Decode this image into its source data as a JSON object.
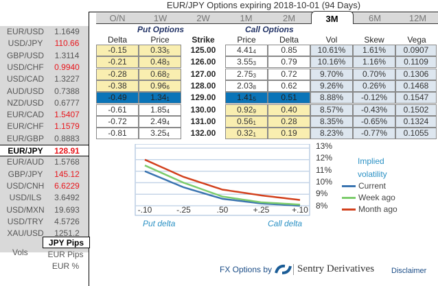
{
  "title": "EUR/JPY Options expiring 2018-10-01 (94 Days)",
  "tabs": [
    "O/N",
    "1W",
    "2W",
    "1M",
    "2M",
    "3M",
    "6M",
    "12M"
  ],
  "active_tab": "3M",
  "pairs": [
    {
      "name": "EUR/USD",
      "value": "1.1649",
      "red": false
    },
    {
      "name": "USD/JPY",
      "value": "110.66",
      "red": true
    },
    {
      "name": "GBP/USD",
      "value": "1.3114",
      "red": false
    },
    {
      "name": "USD/CHF",
      "value": "0.9940",
      "red": true
    },
    {
      "name": "USD/CAD",
      "value": "1.3227",
      "red": false
    },
    {
      "name": "AUD/USD",
      "value": "0.7388",
      "red": false
    },
    {
      "name": "NZD/USD",
      "value": "0.6777",
      "red": false
    },
    {
      "name": "EUR/CAD",
      "value": "1.5407",
      "red": true
    },
    {
      "name": "EUR/CHF",
      "value": "1.1579",
      "red": true
    },
    {
      "name": "EUR/GBP",
      "value": "0.8883",
      "red": false
    },
    {
      "name": "EUR/JPY",
      "value": "128.91",
      "red": true,
      "selected": true
    },
    {
      "name": "EUR/AUD",
      "value": "1.5768",
      "red": false
    },
    {
      "name": "GBP/JPY",
      "value": "145.12",
      "red": true
    },
    {
      "name": "USD/CNH",
      "value": "6.6229",
      "red": true
    },
    {
      "name": "USD/ILS",
      "value": "3.6492",
      "red": false
    },
    {
      "name": "USD/MXN",
      "value": "19.693",
      "red": false
    },
    {
      "name": "USD/TRY",
      "value": "4.5726",
      "red": false
    },
    {
      "name": "XAU/USD",
      "value": "1251.2",
      "red": false
    }
  ],
  "units": {
    "label": "Vols",
    "options": [
      "JPY Pips",
      "EUR Pips",
      "EUR %"
    ],
    "selected": "JPY Pips"
  },
  "groups": {
    "put": "Put Options",
    "call": "Call Options"
  },
  "headers": {
    "put_delta": "Delta",
    "put_price": "Price",
    "strike": "Strike",
    "call_price": "Price",
    "call_delta": "Delta",
    "vol": "Vol",
    "skew": "Skew",
    "vega": "Vega"
  },
  "rows": [
    {
      "put_delta": "-0.15",
      "put_price": "0.33",
      "put_price_sub": "5",
      "strike": "125.00",
      "call_price": "4.41",
      "call_price_sub": "4",
      "call_delta": "0.85",
      "vol": "10.61%",
      "skew": "1.61%",
      "vega": "0.0907",
      "put_itm": false,
      "atm": false
    },
    {
      "put_delta": "-0.21",
      "put_price": "0.48",
      "put_price_sub": "3",
      "strike": "126.00",
      "call_price": "3.55",
      "call_price_sub": "3",
      "call_delta": "0.79",
      "vol": "10.16%",
      "skew": "1.16%",
      "vega": "0.1109",
      "put_itm": false,
      "atm": false
    },
    {
      "put_delta": "-0.28",
      "put_price": "0.68",
      "put_price_sub": "2",
      "strike": "127.00",
      "call_price": "2.75",
      "call_price_sub": "3",
      "call_delta": "0.72",
      "vol": "9.70%",
      "skew": "0.70%",
      "vega": "0.1306",
      "put_itm": false,
      "atm": false
    },
    {
      "put_delta": "-0.38",
      "put_price": "0.96",
      "put_price_sub": "6",
      "strike": "128.00",
      "call_price": "2.03",
      "call_price_sub": "8",
      "call_delta": "0.62",
      "vol": "9.26%",
      "skew": "0.26%",
      "vega": "0.1468",
      "put_itm": false,
      "atm": false
    },
    {
      "put_delta": "-0.49",
      "put_price": "1.34",
      "put_price_sub": "1",
      "strike": "129.00",
      "call_price": "1.41",
      "call_price_sub": "5",
      "call_delta": "0.51",
      "vol": "8.88%",
      "skew": "-0.12%",
      "vega": "0.1547",
      "put_itm": false,
      "atm": true
    },
    {
      "put_delta": "-0.61",
      "put_price": "1.85",
      "put_price_sub": "4",
      "strike": "130.00",
      "call_price": "0.92",
      "call_price_sub": "9",
      "call_delta": "0.40",
      "vol": "8.57%",
      "skew": "-0.43%",
      "vega": "0.1502",
      "put_itm": true,
      "atm": false
    },
    {
      "put_delta": "-0.72",
      "put_price": "2.49",
      "put_price_sub": "4",
      "strike": "131.00",
      "call_price": "0.56",
      "call_price_sub": "1",
      "call_delta": "0.28",
      "vol": "8.35%",
      "skew": "-0.65%",
      "vega": "0.1324",
      "put_itm": true,
      "atm": false
    },
    {
      "put_delta": "-0.81",
      "put_price": "3.25",
      "put_price_sub": "4",
      "strike": "132.00",
      "call_price": "0.32",
      "call_price_sub": "1",
      "call_delta": "0.19",
      "vol": "8.23%",
      "skew": "-0.77%",
      "vega": "0.1055",
      "put_itm": true,
      "atm": false
    }
  ],
  "chart_data": {
    "type": "line",
    "title": "Implied volatility",
    "categories": [
      "-.10",
      "-.25",
      ".50",
      "+.25",
      "+.10"
    ],
    "xlabel_left": "Put delta",
    "xlabel_right": "Call delta",
    "yticks": [
      "13%",
      "12%",
      "11%",
      "10%",
      "9%",
      "8%"
    ],
    "ylim": [
      8,
      13
    ],
    "series": [
      {
        "name": "Current",
        "color": "#3a74b0",
        "values": [
          11.0,
          9.6,
          8.6,
          8.2,
          8.0
        ]
      },
      {
        "name": "Week ago",
        "color": "#7ccc6c",
        "values": [
          11.5,
          10.0,
          8.8,
          8.3,
          8.1
        ]
      },
      {
        "name": "Month ago",
        "color": "#d2401c",
        "values": [
          12.0,
          10.5,
          9.4,
          8.9,
          8.5
        ]
      }
    ]
  },
  "footer": {
    "brand": "FX Options by",
    "company": "Sentry Derivatives",
    "disclaimer": "Disclaimer"
  }
}
